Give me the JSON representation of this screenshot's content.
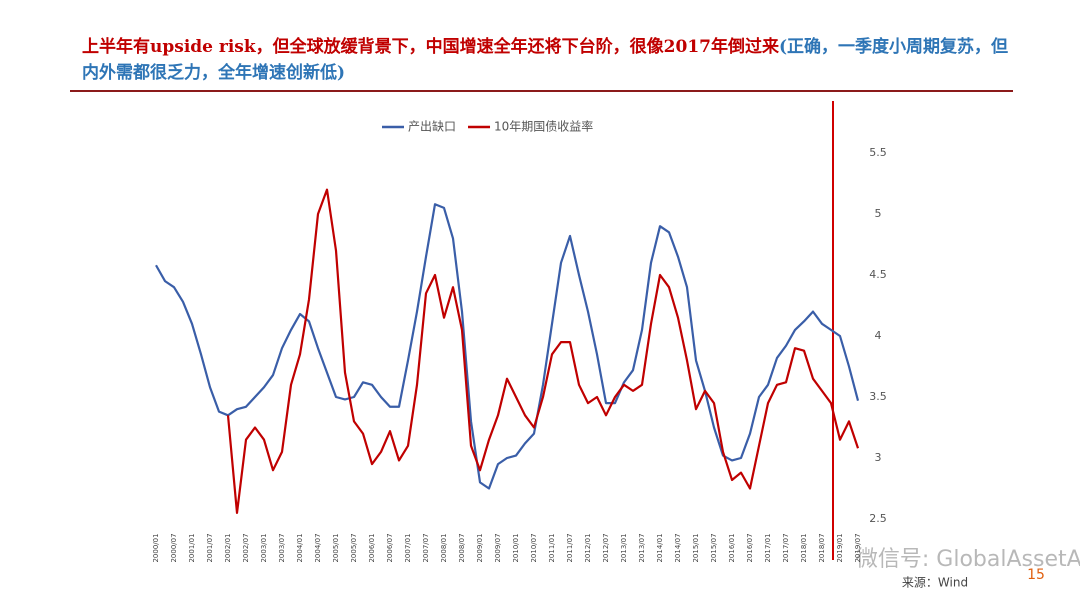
{
  "chart_data": {
    "type": "line",
    "title": "上半年有upside risk，但全球放缓背景下，中国增速全年还将下台阶，很像2017年倒过来",
    "subtitle": "(正确，一季度小周期复苏，但内外需都很乏力，全年增速创新低)",
    "source": "来源：Wind",
    "page": "15",
    "watermark": "微信号: GlobalAssetAllocator",
    "categories": [
      "2000/01",
      null,
      "2000/07",
      null,
      "2001/01",
      null,
      "2001/07",
      null,
      "2002/01",
      null,
      "2002/07",
      null,
      "2003/01",
      null,
      "2003/07",
      null,
      "2004/01",
      null,
      "2004/07",
      null,
      "2005/01",
      null,
      "2005/07",
      null,
      "2006/01",
      null,
      "2006/07",
      null,
      "2007/01",
      null,
      "2007/07",
      null,
      "2008/01",
      null,
      "2008/07",
      null,
      "2009/01",
      null,
      "2009/07",
      null,
      "2010/01",
      null,
      "2010/07",
      null,
      "2011/01",
      null,
      "2011/07",
      null,
      "2012/01",
      null,
      "2012/07",
      null,
      "2013/01",
      null,
      "2013/07",
      null,
      "2014/01",
      null,
      "2014/07",
      null,
      "2015/01",
      null,
      "2015/07",
      null,
      "2016/01",
      null,
      "2016/07",
      null,
      "2017/01",
      null,
      "2017/07",
      null,
      "2018/01",
      null,
      "2018/07",
      null,
      "2019/01",
      null,
      "2019/07"
    ],
    "series": [
      {
        "name": "产出缺口",
        "color": "#3a5ea8",
        "values": [
          4.58,
          4.45,
          4.4,
          4.28,
          4.1,
          3.85,
          3.58,
          3.38,
          3.35,
          3.4,
          3.42,
          3.5,
          3.58,
          3.68,
          3.9,
          4.05,
          4.18,
          4.12,
          3.9,
          3.7,
          3.5,
          3.48,
          3.5,
          3.62,
          3.6,
          3.5,
          3.42,
          3.42,
          3.8,
          4.2,
          4.65,
          5.08,
          5.05,
          4.8,
          4.2,
          3.3,
          2.8,
          2.75,
          2.95,
          3.0,
          3.02,
          3.12,
          3.2,
          3.6,
          4.1,
          4.6,
          4.82,
          4.5,
          4.2,
          3.85,
          3.45,
          3.45,
          3.62,
          3.72,
          4.05,
          4.6,
          4.9,
          4.85,
          4.65,
          4.4,
          3.8,
          3.55,
          3.25,
          3.02,
          2.98,
          3.0,
          3.2,
          3.5,
          3.6,
          3.82,
          3.92,
          4.05,
          4.12,
          4.2,
          4.1,
          4.05,
          4.0,
          3.75,
          3.47
        ]
      },
      {
        "name": "10年期国债收益率",
        "color": "#c00000",
        "values": [
          null,
          null,
          null,
          null,
          null,
          null,
          null,
          null,
          3.35,
          2.55,
          3.15,
          3.25,
          3.15,
          2.9,
          3.05,
          3.6,
          3.85,
          4.3,
          5.0,
          5.2,
          4.7,
          3.7,
          3.3,
          3.2,
          2.95,
          3.05,
          3.22,
          2.98,
          3.1,
          3.6,
          4.35,
          4.5,
          4.15,
          4.4,
          4.05,
          3.1,
          2.9,
          3.15,
          3.35,
          3.65,
          3.5,
          3.35,
          3.25,
          3.5,
          3.85,
          3.95,
          3.95,
          3.6,
          3.45,
          3.5,
          3.35,
          3.5,
          3.6,
          3.55,
          3.6,
          4.1,
          4.5,
          4.4,
          4.15,
          3.8,
          3.4,
          3.55,
          3.45,
          3.05,
          2.82,
          2.88,
          2.75,
          3.1,
          3.45,
          3.6,
          3.62,
          3.9,
          3.88,
          3.65,
          3.55,
          3.45,
          3.15,
          3.3,
          3.08
        ]
      }
    ],
    "ylim": [
      2.5,
      5.5
    ],
    "yticks": [
      2.5,
      3,
      3.5,
      4,
      4.5,
      5,
      5.5
    ],
    "grid": false,
    "legend": "top"
  }
}
